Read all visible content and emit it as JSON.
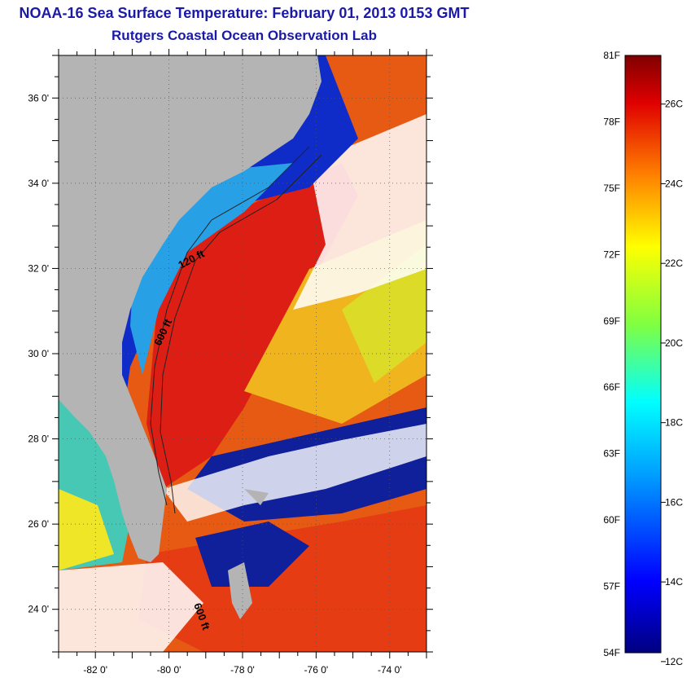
{
  "header": {
    "title": "NOAA-16 Sea Surface Temperature:  February 01, 2013 0153 GMT",
    "subtitle": "Rutgers Coastal Ocean Observation Lab"
  },
  "map": {
    "lon_range": [
      -83,
      -73
    ],
    "lat_range": [
      23,
      37
    ],
    "lon_ticks": [
      "-82 0'",
      "-80 0'",
      "-78 0'",
      "-76 0'",
      "-74 0'"
    ],
    "lat_ticks": [
      "36 0'",
      "34 0'",
      "32 0'",
      "30 0'",
      "28 0'",
      "26 0'",
      "24 0'"
    ],
    "isobath_labels": [
      "120 ft",
      "600 ft",
      "600 ft"
    ],
    "colors": {
      "land": "#b4b4b4",
      "cloud": "#ffffff",
      "cold": "#1428b4",
      "warm": "#e63214"
    }
  },
  "colorbar": {
    "fahrenheit_labels": [
      "81F",
      "78F",
      "75F",
      "72F",
      "69F",
      "66F",
      "63F",
      "60F",
      "57F",
      "54F"
    ],
    "celsius_labels": [
      "26C",
      "24C",
      "22C",
      "20C",
      "18C",
      "16C",
      "14C",
      "12C"
    ],
    "range_f": [
      54,
      81
    ]
  }
}
